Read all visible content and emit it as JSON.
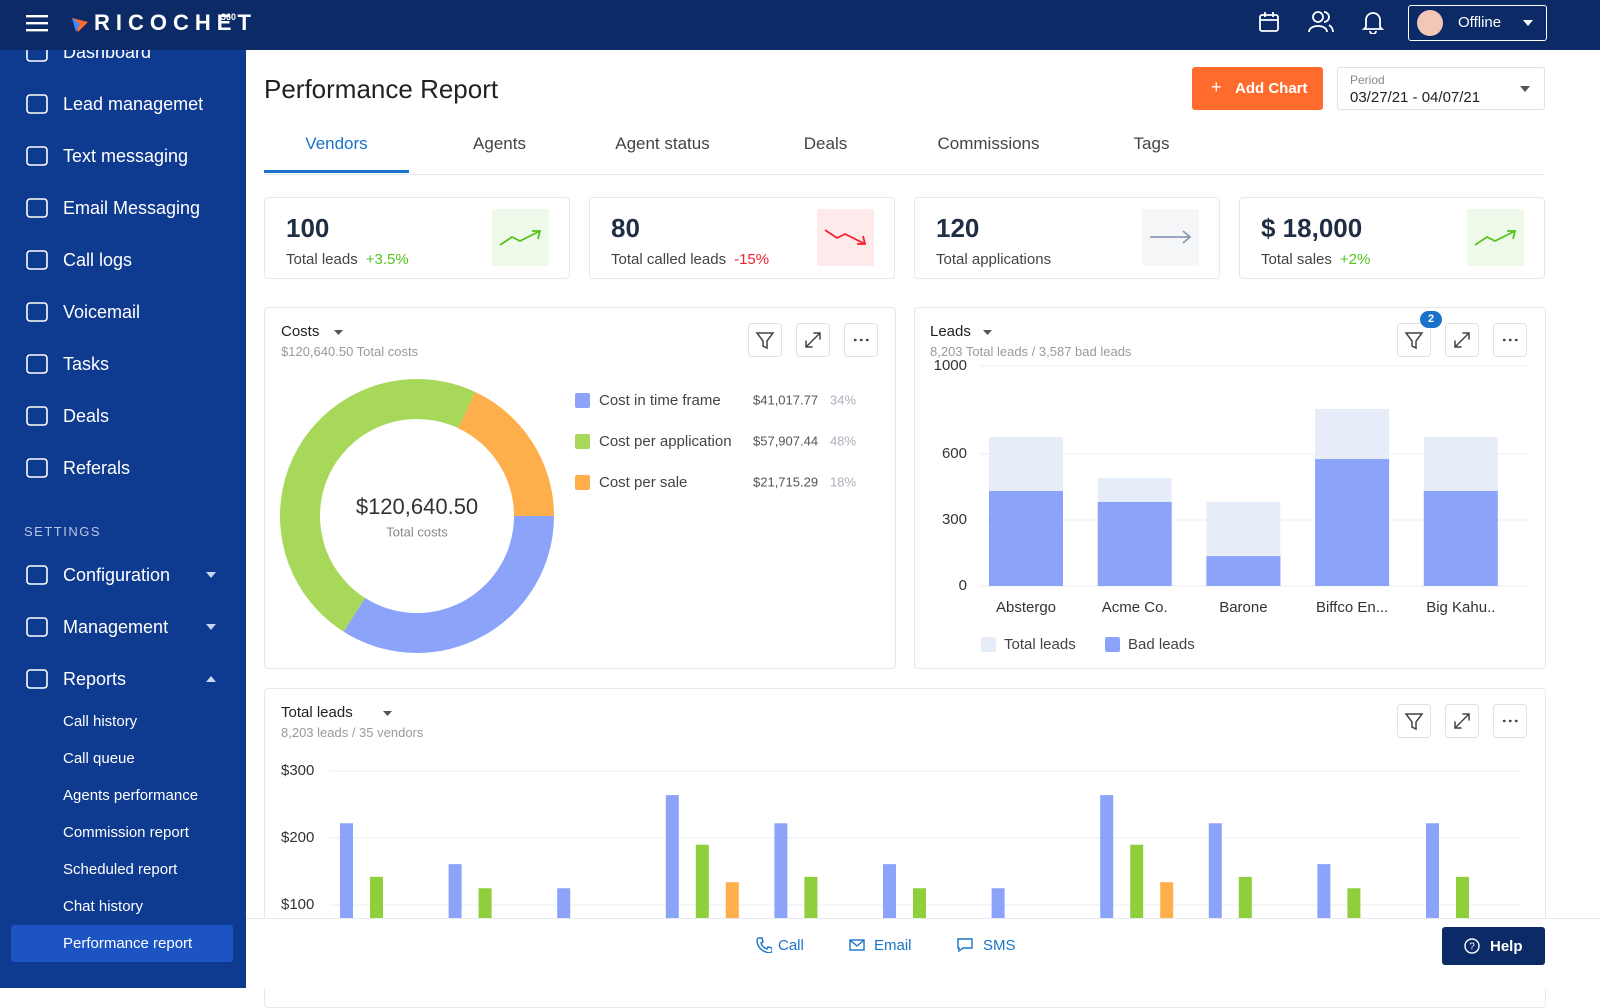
{
  "topbar": {
    "brand": "RICOCHET",
    "brand_sup": "360",
    "status": "Offline"
  },
  "sidebar": {
    "items": [
      "Dashboard",
      "Lead managemet",
      "Text messaging",
      "Email Messaging",
      "Call logs",
      "Voicemail",
      "Tasks",
      "Deals",
      "Referals"
    ],
    "settings_label": "SETTINGS",
    "settings": [
      "Configuration",
      "Management",
      "Reports"
    ],
    "reports": [
      "Call history",
      "Call queue",
      "Agents performance",
      "Commission report",
      "Scheduled report",
      "Chat history",
      "Performance report"
    ]
  },
  "header": {
    "title": "Performance Report",
    "add_chart": "Add Chart",
    "period_label": "Period",
    "period": "03/27/21 - 04/07/21"
  },
  "tabs": [
    "Vendors",
    "Agents",
    "Agent status",
    "Deals",
    "Commissions",
    "Tags"
  ],
  "kpis": [
    {
      "value": "100",
      "label": "Total leads",
      "change": "+3.5%",
      "color": "#52c41a"
    },
    {
      "value": "80",
      "label": "Total called leads",
      "change": "-15%",
      "color": "#f5222d"
    },
    {
      "value": "120",
      "label": "Total applications",
      "color": "#8c9bb5"
    },
    {
      "value": "$ 18,000",
      "label": "Total sales",
      "change": "+2%",
      "color": "#52c41a"
    }
  ],
  "costs": {
    "type": "pie",
    "title": "Costs",
    "subtitle": "$120,640.50 Total costs",
    "center_value": "$120,640.50",
    "center_label": "Total costs",
    "series": [
      {
        "name": "Cost in time frame",
        "color": "#8ba4f9",
        "amount": "$41,017.77",
        "value": 34,
        "value_label": "34%"
      },
      {
        "name": "Cost per application",
        "color": "#a8d85a",
        "amount": "$57,907.44",
        "value": 48,
        "value_label": "48%"
      },
      {
        "name": "Cost per sale",
        "color": "#ffae4c",
        "amount": "$21,715.29",
        "value": 18,
        "value_label": "18%"
      }
    ]
  },
  "leads": {
    "type": "bar",
    "title": "Leads",
    "subtitle": "8,203 Total leads / 3,587 bad leads",
    "filter_badge": "2",
    "categories": [
      "Abstergo",
      "Acme Co.",
      "Barone",
      "Biffco En...",
      "Big Kahu.."
    ],
    "series": [
      {
        "name": "Total leads",
        "color": "#e6edf9",
        "values": [
          677,
          491,
          382,
          805,
          677
        ]
      },
      {
        "name": "Bad leads",
        "color": "#8ba4f9",
        "values": [
          432,
          382,
          136,
          577,
          432
        ]
      }
    ],
    "ylim": [
      0,
      1000
    ],
    "yticks": [
      0,
      300,
      600,
      1000
    ],
    "grid": true
  },
  "total_leads": {
    "type": "bar",
    "title": "Total leads",
    "subtitle": "8,203 leads / 35 vendors",
    "series": [
      {
        "color": "#8ba4f9",
        "values": [
          222,
          161,
          125,
          264,
          222,
          161,
          125,
          264,
          222,
          161,
          222
        ]
      },
      {
        "color": "#8fcf3c",
        "values": [
          142,
          125,
          null,
          190,
          142,
          125,
          null,
          190,
          142,
          125,
          142
        ]
      },
      {
        "color": "#ffae4c",
        "values": [
          null,
          null,
          null,
          134,
          null,
          null,
          null,
          134,
          null,
          null,
          null
        ]
      }
    ],
    "ylim": [
      0,
      300
    ],
    "yticks": [
      {
        "value": 100,
        "label": "$100"
      },
      {
        "value": 200,
        "label": "$200"
      },
      {
        "value": 300,
        "label": "$300"
      }
    ],
    "grid": true
  },
  "footer": {
    "call": "Call",
    "email": "Email",
    "sms": "SMS",
    "help": "Help"
  }
}
